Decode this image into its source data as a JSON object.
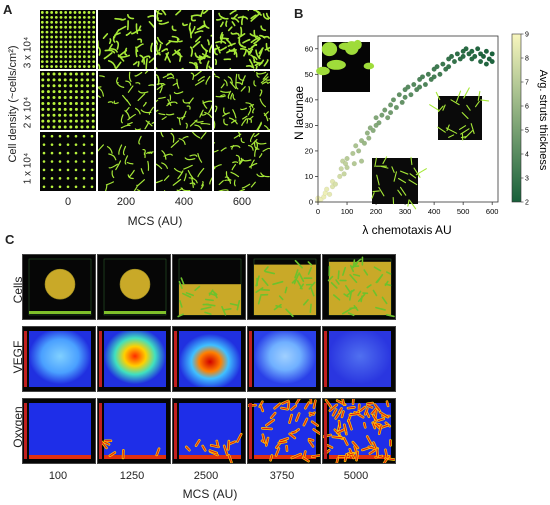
{
  "panel_a": {
    "letter": "A",
    "ylabel": "Cell density (~cells/cm²)",
    "row_labels": [
      "3 x 10⁴",
      "2 x 10⁴",
      "1 x 10⁴"
    ],
    "col_labels": [
      "0",
      "200",
      "400",
      "600"
    ],
    "xlabel": "MCS (AU)"
  },
  "panel_b": {
    "letter": "B",
    "colorbar_label": "Avg. struts thickness",
    "colorbar_ticks": [
      "9",
      "8",
      "7",
      "6",
      "5",
      "4",
      "3",
      "2"
    ]
  },
  "panel_c": {
    "letter": "C",
    "row_labels": [
      "Cells",
      "VEGF",
      "Oxygen"
    ],
    "col_labels": [
      "100",
      "1250",
      "2500",
      "3750",
      "5000"
    ],
    "xlabel": "MCS (AU)"
  },
  "chart_data": {
    "type": "scatter",
    "title": "",
    "xlabel": "λ chemotaxis AU",
    "ylabel": "N lacunae",
    "xlim": [
      0,
      620
    ],
    "ylim": [
      0,
      65
    ],
    "xticks": [
      "0",
      "100",
      "200",
      "300",
      "400",
      "500",
      "600"
    ],
    "yticks": [
      "0",
      "10",
      "20",
      "30",
      "40",
      "50",
      "60"
    ],
    "grid": false,
    "colorbar": {
      "label": "Avg. struts thickness",
      "range": [
        2,
        9
      ]
    },
    "points": [
      {
        "x": 0,
        "y": 0.5,
        "c": 8.8
      },
      {
        "x": 0,
        "y": 1.5,
        "c": 8.9
      },
      {
        "x": 10,
        "y": 1,
        "c": 8.7
      },
      {
        "x": 20,
        "y": 2,
        "c": 8.6
      },
      {
        "x": 25,
        "y": 3.5,
        "c": 8.7
      },
      {
        "x": 30,
        "y": 5,
        "c": 8.5
      },
      {
        "x": 40,
        "y": 3,
        "c": 8.4
      },
      {
        "x": 50,
        "y": 6,
        "c": 8.2
      },
      {
        "x": 50,
        "y": 8,
        "c": 8.3
      },
      {
        "x": 60,
        "y": 7,
        "c": 8.0
      },
      {
        "x": 75,
        "y": 10,
        "c": 7.8
      },
      {
        "x": 80,
        "y": 13,
        "c": 7.6
      },
      {
        "x": 85,
        "y": 16,
        "c": 7.4
      },
      {
        "x": 90,
        "y": 11,
        "c": 7.5
      },
      {
        "x": 95,
        "y": 15,
        "c": 7.3
      },
      {
        "x": 100,
        "y": 13.5,
        "c": 7.2
      },
      {
        "x": 100,
        "y": 17,
        "c": 7.0
      },
      {
        "x": 120,
        "y": 19,
        "c": 6.8
      },
      {
        "x": 125,
        "y": 15,
        "c": 6.9
      },
      {
        "x": 130,
        "y": 22,
        "c": 6.6
      },
      {
        "x": 140,
        "y": 20,
        "c": 6.5
      },
      {
        "x": 150,
        "y": 16,
        "c": 6.7
      },
      {
        "x": 150,
        "y": 24,
        "c": 6.2
      },
      {
        "x": 160,
        "y": 23,
        "c": 6.1
      },
      {
        "x": 170,
        "y": 27,
        "c": 5.9
      },
      {
        "x": 175,
        "y": 25,
        "c": 6.0
      },
      {
        "x": 180,
        "y": 29,
        "c": 5.7
      },
      {
        "x": 190,
        "y": 28,
        "c": 5.6
      },
      {
        "x": 200,
        "y": 30,
        "c": 5.4
      },
      {
        "x": 200,
        "y": 33,
        "c": 5.3
      },
      {
        "x": 210,
        "y": 31,
        "c": 5.2
      },
      {
        "x": 220,
        "y": 34,
        "c": 5.0
      },
      {
        "x": 230,
        "y": 36,
        "c": 4.9
      },
      {
        "x": 240,
        "y": 33,
        "c": 5.1
      },
      {
        "x": 250,
        "y": 38,
        "c": 4.7
      },
      {
        "x": 250,
        "y": 35,
        "c": 4.8
      },
      {
        "x": 260,
        "y": 40,
        "c": 4.5
      },
      {
        "x": 270,
        "y": 37,
        "c": 4.6
      },
      {
        "x": 280,
        "y": 42,
        "c": 4.3
      },
      {
        "x": 290,
        "y": 39,
        "c": 4.4
      },
      {
        "x": 300,
        "y": 44,
        "c": 4.1
      },
      {
        "x": 300,
        "y": 41,
        "c": 4.2
      },
      {
        "x": 310,
        "y": 45,
        "c": 4.0
      },
      {
        "x": 320,
        "y": 42,
        "c": 4.1
      },
      {
        "x": 330,
        "y": 46,
        "c": 3.9
      },
      {
        "x": 340,
        "y": 44,
        "c": 3.9
      },
      {
        "x": 350,
        "y": 48,
        "c": 3.7
      },
      {
        "x": 350,
        "y": 45,
        "c": 3.8
      },
      {
        "x": 360,
        "y": 49,
        "c": 3.6
      },
      {
        "x": 370,
        "y": 46,
        "c": 3.7
      },
      {
        "x": 380,
        "y": 50,
        "c": 3.5
      },
      {
        "x": 390,
        "y": 48,
        "c": 3.5
      },
      {
        "x": 400,
        "y": 52,
        "c": 3.3
      },
      {
        "x": 400,
        "y": 49,
        "c": 3.4
      },
      {
        "x": 410,
        "y": 53,
        "c": 3.2
      },
      {
        "x": 420,
        "y": 50,
        "c": 3.3
      },
      {
        "x": 430,
        "y": 54,
        "c": 3.1
      },
      {
        "x": 440,
        "y": 52,
        "c": 3.1
      },
      {
        "x": 450,
        "y": 56,
        "c": 2.9
      },
      {
        "x": 450,
        "y": 53,
        "c": 3.0
      },
      {
        "x": 460,
        "y": 57,
        "c": 2.8
      },
      {
        "x": 470,
        "y": 55,
        "c": 2.9
      },
      {
        "x": 480,
        "y": 58,
        "c": 2.7
      },
      {
        "x": 490,
        "y": 56,
        "c": 2.7
      },
      {
        "x": 500,
        "y": 59,
        "c": 2.6
      },
      {
        "x": 500,
        "y": 57,
        "c": 2.6
      },
      {
        "x": 510,
        "y": 60,
        "c": 2.5
      },
      {
        "x": 520,
        "y": 58,
        "c": 2.5
      },
      {
        "x": 530,
        "y": 59,
        "c": 2.4
      },
      {
        "x": 540,
        "y": 57,
        "c": 2.4
      },
      {
        "x": 550,
        "y": 60,
        "c": 2.3
      },
      {
        "x": 560,
        "y": 58,
        "c": 2.3
      },
      {
        "x": 570,
        "y": 57,
        "c": 2.2
      },
      {
        "x": 580,
        "y": 59,
        "c": 2.2
      },
      {
        "x": 590,
        "y": 56,
        "c": 2.1
      },
      {
        "x": 600,
        "y": 58,
        "c": 2.1
      },
      {
        "x": 600,
        "y": 55,
        "c": 2.2
      },
      {
        "x": 580,
        "y": 54,
        "c": 2.3
      },
      {
        "x": 560,
        "y": 55,
        "c": 2.4
      },
      {
        "x": 530,
        "y": 56,
        "c": 2.5
      }
    ]
  }
}
